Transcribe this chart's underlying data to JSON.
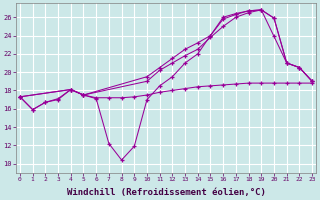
{
  "background_color": "#cce8e8",
  "grid_color": "#ffffff",
  "line_color": "#990099",
  "xlabel": "Windchill (Refroidissement éolien,°C)",
  "xlabel_fontsize": 6.5,
  "yticks": [
    10,
    12,
    14,
    16,
    18,
    20,
    22,
    24,
    26
  ],
  "xticks": [
    0,
    1,
    2,
    3,
    4,
    5,
    6,
    7,
    8,
    9,
    10,
    11,
    12,
    13,
    14,
    15,
    16,
    17,
    18,
    19,
    20,
    21,
    22,
    23
  ],
  "xlim": [
    -0.3,
    23.3
  ],
  "ylim": [
    9.0,
    27.5
  ],
  "series": [
    {
      "x": [
        0,
        1,
        2,
        3,
        4,
        5,
        6,
        7,
        8,
        9,
        10,
        11,
        12,
        13,
        14,
        15,
        16,
        17,
        18,
        19,
        20,
        21,
        22,
        23
      ],
      "y": [
        17.3,
        15.9,
        16.7,
        17.0,
        18.1,
        17.5,
        17.1,
        12.2,
        10.4,
        11.9,
        17.0,
        18.5,
        19.5,
        21.0,
        22.0,
        24.0,
        26.0,
        26.4,
        26.7,
        26.8,
        25.9,
        21.0,
        20.5,
        19.0
      ]
    },
    {
      "x": [
        0,
        1,
        2,
        3,
        4,
        5,
        6,
        7,
        8,
        9,
        10,
        11,
        12,
        13,
        14,
        15,
        16,
        17,
        18,
        19,
        20,
        21,
        22,
        23
      ],
      "y": [
        17.3,
        15.9,
        16.7,
        17.1,
        18.1,
        17.5,
        17.2,
        17.2,
        17.2,
        17.3,
        17.5,
        17.8,
        18.0,
        18.2,
        18.4,
        18.5,
        18.6,
        18.7,
        18.8,
        18.8,
        18.8,
        18.8,
        18.8,
        18.8
      ]
    },
    {
      "x": [
        0,
        4,
        5,
        10,
        11,
        12,
        13,
        14,
        15,
        16,
        17,
        18,
        19,
        20,
        21,
        22,
        23
      ],
      "y": [
        17.3,
        18.1,
        17.5,
        19.5,
        20.5,
        21.5,
        22.5,
        23.2,
        24.0,
        25.8,
        26.3,
        26.7,
        26.8,
        25.9,
        21.0,
        20.5,
        19.0
      ]
    },
    {
      "x": [
        0,
        4,
        5,
        10,
        11,
        12,
        13,
        14,
        15,
        16,
        17,
        18,
        19,
        20,
        21,
        22,
        23
      ],
      "y": [
        17.3,
        18.1,
        17.5,
        19.0,
        20.2,
        21.0,
        21.8,
        22.5,
        23.8,
        25.0,
        26.0,
        26.5,
        26.8,
        23.9,
        21.0,
        20.5,
        19.0
      ]
    }
  ]
}
